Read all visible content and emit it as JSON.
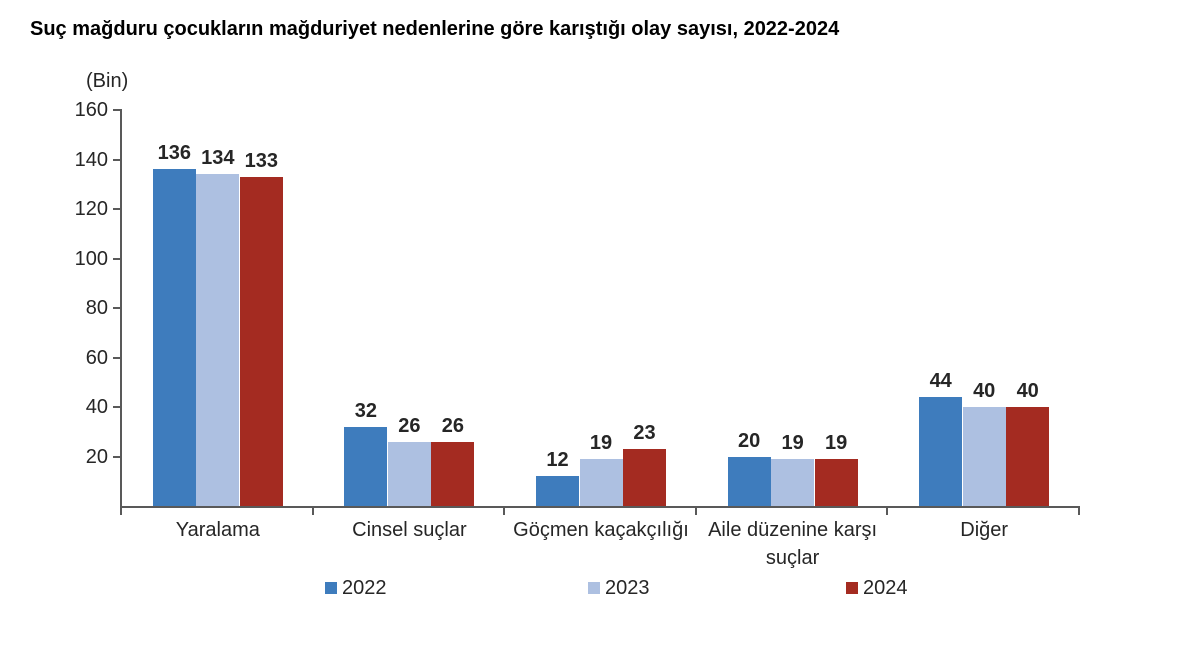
{
  "title": "Suç mağduru çocukların mağduriyet nedenlerine göre karıştığı olay sayısı, 2022-2024",
  "axis_unit_label": "(Bin)",
  "chart_data": {
    "type": "bar",
    "title": "Suç mağduru çocukların mağduriyet nedenlerine göre karıştığı olay sayısı, 2022-2024",
    "ylabel": "(Bin)",
    "xlabel": "",
    "ylim": [
      0,
      160
    ],
    "yticks": [
      20,
      40,
      60,
      80,
      100,
      120,
      140,
      160
    ],
    "grid": false,
    "legend_position": "bottom",
    "data_labels": true,
    "categories": [
      "Yaralama",
      "Cinsel suçlar",
      "Göçmen kaçakçılığı",
      "Aile düzenine karşı suçlar",
      "Diğer"
    ],
    "series": [
      {
        "name": "2022",
        "color": "#3E7CBD",
        "values": [
          136,
          32,
          12,
          20,
          44
        ]
      },
      {
        "name": "2023",
        "color": "#ADC0E1",
        "values": [
          134,
          26,
          19,
          19,
          40
        ]
      },
      {
        "name": "2024",
        "color": "#A42B21",
        "values": [
          133,
          26,
          23,
          19,
          40
        ]
      }
    ]
  },
  "style_colors": {
    "axis": "#595959",
    "text": "#262626",
    "title": "#000000"
  }
}
